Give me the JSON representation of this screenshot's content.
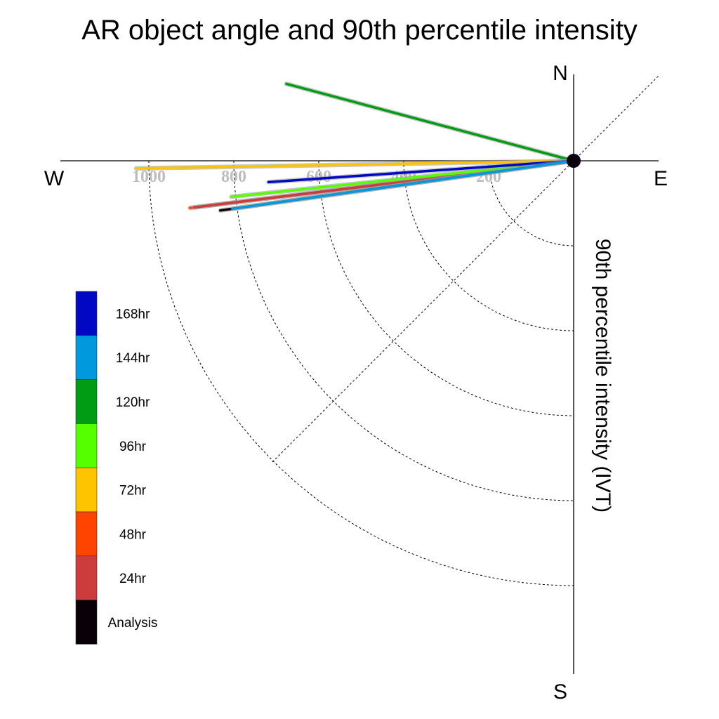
{
  "chart_data": {
    "type": "polar-vector",
    "title": "AR object angle and 90th percentile intensity",
    "radial_label": "90th percentile intensity (IVT)",
    "compass": {
      "north": "N",
      "south": "S",
      "east": "E",
      "west": "W"
    },
    "radial_ticks": [
      200,
      400,
      600,
      800,
      1000
    ],
    "rmax": 1200,
    "grid": true,
    "legend_position": "left",
    "series": [
      {
        "name": "Analysis",
        "color": "#0a0008",
        "intensity": 840,
        "angle_deg": 262
      },
      {
        "name": "24hr",
        "color": "#cc3c3c",
        "intensity": 900,
        "angle_deg": 263
      },
      {
        "name": "48hr",
        "color": "#ff4400",
        "intensity": 910,
        "angle_deg": 263
      },
      {
        "name": "72hr",
        "color": "#ffc400",
        "intensity": 1030,
        "angle_deg": 269
      },
      {
        "name": "96hr",
        "color": "#55ff00",
        "intensity": 810,
        "angle_deg": 264
      },
      {
        "name": "120hr",
        "color": "#009c14",
        "intensity": 700,
        "angle_deg": 285
      },
      {
        "name": "144hr",
        "color": "#0099dd",
        "intensity": 810,
        "angle_deg": 262
      },
      {
        "name": "168hr",
        "color": "#0008c4",
        "intensity": 720,
        "angle_deg": 266
      }
    ],
    "legend_order": [
      "168hr",
      "144hr",
      "120hr",
      "96hr",
      "72hr",
      "48hr",
      "24hr",
      "Analysis"
    ]
  }
}
